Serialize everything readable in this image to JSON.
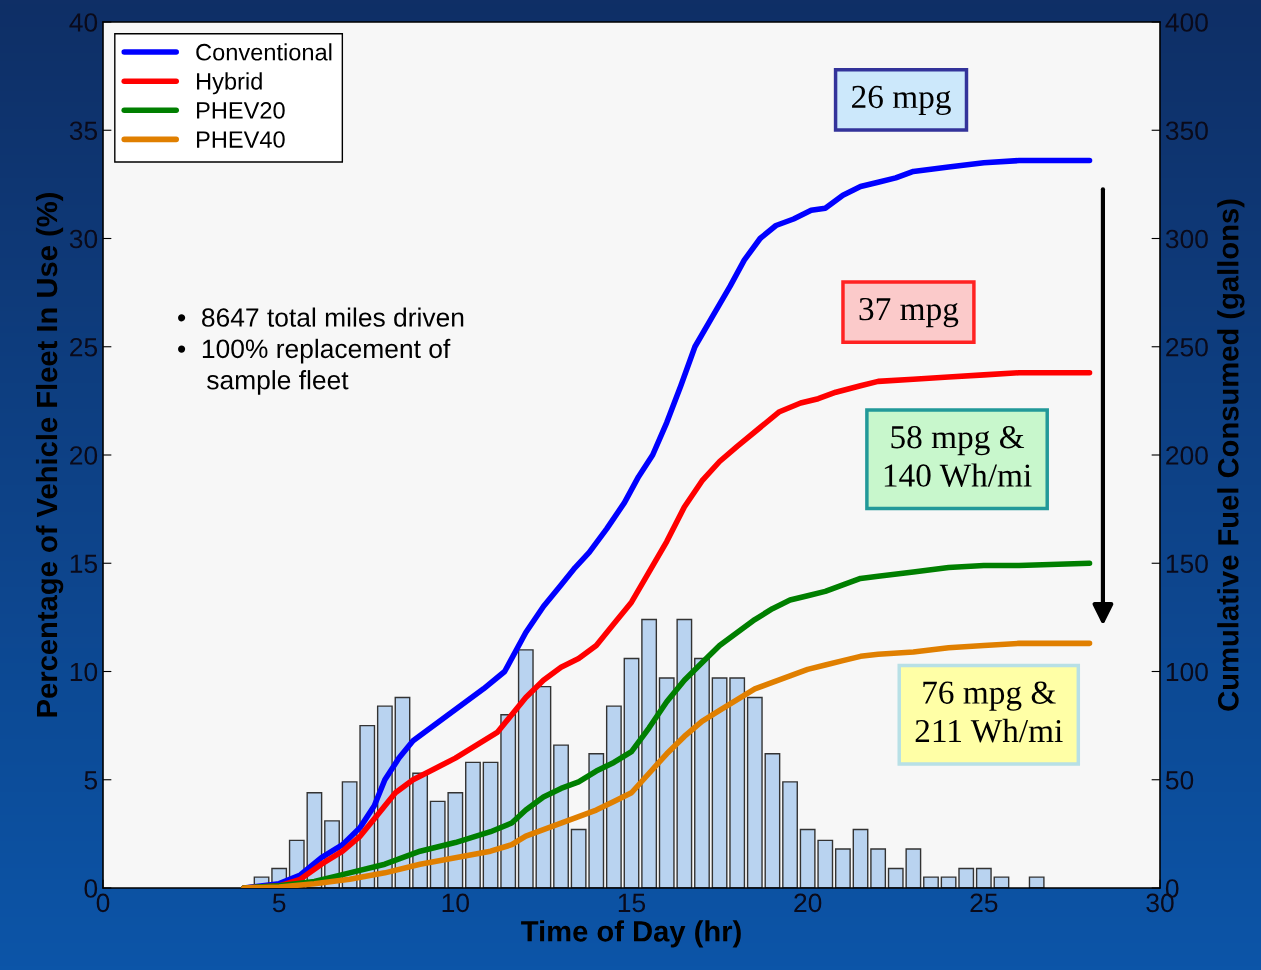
{
  "chart_data": {
    "type": "line",
    "xlabel": "Time of Day (hr)",
    "ylabel": "Percentage of Vehicle Fleet In Use (%)",
    "y2label": "Cumulative Fuel Consumed (gallons)",
    "xlim": [
      0,
      30
    ],
    "xticks": [
      0,
      5,
      10,
      15,
      20,
      25,
      30
    ],
    "ylim": [
      0,
      40
    ],
    "yticks": [
      0,
      5,
      10,
      15,
      20,
      25,
      30,
      35,
      40
    ],
    "y2lim": [
      0,
      400
    ],
    "y2ticks": [
      0,
      50,
      100,
      150,
      200,
      250,
      300,
      350,
      400
    ],
    "grid": false,
    "legend": "top left",
    "annotations": [
      "26 mpg",
      "37 mpg",
      "58 mpg &\n140 Wh/mi",
      "76 mpg &\n211 Wh/mi",
      "•  8647 total miles driven\n•  100% replacement of\n    sample fleet"
    ],
    "series": [
      {
        "type": "histogram",
        "color": "#b9d3f0",
        "bins": [
          4.25,
          4.75,
          5.25,
          5.75,
          6.25,
          6.75,
          7.25,
          7.75,
          8.25,
          8.75,
          9.25,
          9.75,
          10.25,
          10.75,
          11.25,
          11.75,
          12.25,
          12.75,
          13.25,
          13.75,
          14.25,
          14.75,
          15.25,
          15.75,
          16.25,
          16.75,
          17.25,
          17.75,
          18.25,
          18.75,
          19.25,
          19.75,
          20.25,
          20.75,
          21.25,
          21.75,
          22.25,
          22.75,
          23.25,
          23.75,
          24.25,
          24.75,
          25.25,
          25.75,
          26.25,
          26.75
        ],
        "values": [
          0.5,
          0.9,
          2.2,
          4.4,
          3.1,
          4.9,
          7.5,
          8.4,
          8.8,
          5.3,
          4.0,
          4.4,
          5.8,
          5.8,
          8.0,
          11.0,
          9.3,
          6.6,
          2.7,
          6.2,
          8.4,
          10.6,
          12.4,
          9.7,
          12.4,
          10.6,
          9.7,
          9.7,
          8.8,
          6.2,
          4.9,
          2.7,
          2.2,
          1.8,
          2.7,
          1.8,
          0.9,
          1.8,
          0.5,
          0.5,
          0.9,
          0.9,
          0.5,
          0,
          0.5
        ]
      },
      {
        "name": "Conventional",
        "color": "#0000ff",
        "axis": "y2",
        "x": [
          4,
          5,
          5.6,
          6.2,
          6.8,
          7.3,
          7.7,
          8.0,
          8.4,
          8.8,
          9.3,
          9.8,
          10.3,
          10.8,
          11.4,
          12.0,
          12.5,
          13.0,
          13.4,
          13.8,
          14.3,
          14.8,
          15.2,
          15.6,
          16.0,
          16.4,
          16.8,
          17.3,
          17.8,
          18.2,
          18.65,
          19.1,
          19.6,
          20.1,
          20.5,
          21.0,
          21.5,
          22.0,
          22.5,
          23.0,
          24.0,
          25.0,
          26.0,
          27.0,
          28.0
        ],
        "values": [
          0,
          2,
          6,
          14,
          20,
          28,
          38,
          50,
          60,
          68,
          74,
          80,
          86,
          92,
          100,
          118,
          130,
          140,
          148,
          155,
          166,
          178,
          190,
          200,
          215,
          232,
          250,
          264,
          278,
          290,
          300,
          306,
          309,
          313,
          314,
          320,
          324,
          326,
          328,
          331,
          333,
          335,
          336,
          336,
          336
        ]
      },
      {
        "name": "Hybrid",
        "color": "#ff0000",
        "axis": "y2",
        "x": [
          4,
          5,
          5.6,
          6.2,
          6.8,
          7.3,
          7.8,
          8.3,
          8.8,
          9.4,
          10.0,
          10.6,
          11.2,
          11.6,
          12.0,
          12.5,
          13.0,
          13.5,
          14.0,
          14.5,
          15.0,
          15.5,
          16.0,
          16.5,
          17.0,
          17.5,
          18.0,
          18.6,
          19.2,
          19.8,
          20.3,
          20.8,
          21.5,
          22.0,
          23.0,
          24.0,
          25.0,
          26.0,
          28.0
        ],
        "values": [
          0,
          1,
          4,
          11,
          17,
          24,
          34,
          44,
          50,
          55,
          60,
          66,
          72,
          80,
          88,
          96,
          102,
          106,
          112,
          122,
          132,
          146,
          160,
          176,
          188,
          197,
          204,
          212,
          220,
          224,
          226,
          229,
          232,
          234,
          235,
          236,
          237,
          238,
          238
        ]
      },
      {
        "name": "PHEV20",
        "color": "#007f00",
        "axis": "y2",
        "x": [
          4,
          5,
          6,
          7,
          8,
          9,
          10,
          11,
          11.6,
          12.0,
          12.5,
          13.0,
          13.5,
          14.0,
          14.5,
          15.0,
          15.5,
          16.0,
          16.5,
          17.0,
          17.5,
          18.0,
          18.5,
          19.0,
          19.5,
          20.0,
          20.5,
          21.0,
          21.5,
          22.0,
          23.0,
          24.0,
          25.0,
          26.0,
          28.0
        ],
        "values": [
          0,
          1,
          3,
          7,
          11,
          17,
          21,
          26,
          30,
          36,
          42,
          46,
          49,
          54,
          58,
          63,
          74,
          86,
          96,
          104,
          112,
          118,
          124,
          129,
          133,
          135,
          137,
          140,
          143,
          144,
          146,
          148,
          149,
          149,
          150
        ]
      },
      {
        "name": "PHEV40",
        "color": "#e07f00",
        "axis": "y2",
        "x": [
          4,
          5,
          6,
          7,
          8,
          9,
          10,
          11,
          11.6,
          12.0,
          12.5,
          13.0,
          13.5,
          14.0,
          14.5,
          15.0,
          15.5,
          16.0,
          16.5,
          17.0,
          17.5,
          18.0,
          18.5,
          19.0,
          19.5,
          20.0,
          20.5,
          21.0,
          21.5,
          22.0,
          23.0,
          24.0,
          25.0,
          26.0,
          28.0
        ],
        "values": [
          0,
          0.5,
          2,
          4,
          7,
          11,
          14,
          17,
          20,
          24,
          27,
          30,
          33,
          36,
          40,
          44,
          53,
          62,
          70,
          77,
          82,
          87,
          92,
          95,
          98,
          101,
          103,
          105,
          107,
          108,
          109,
          111,
          112,
          113,
          113
        ]
      }
    ]
  }
}
